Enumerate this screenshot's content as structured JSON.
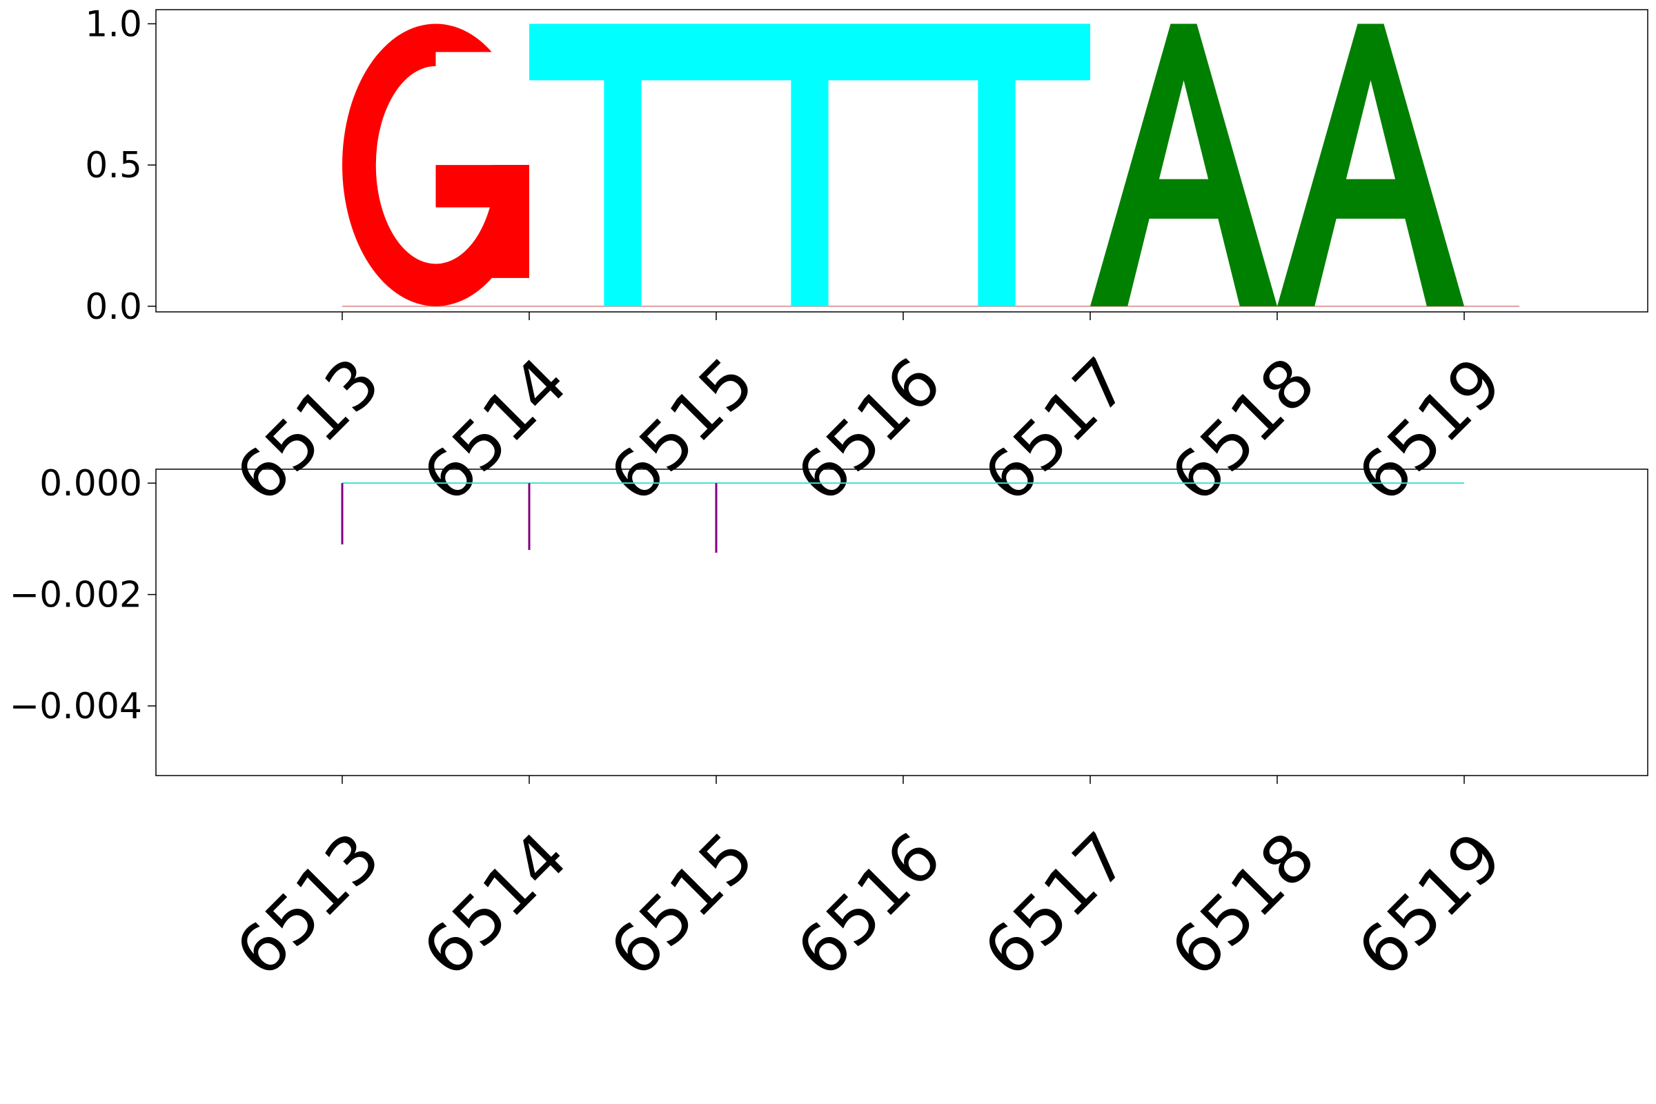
{
  "chart_data": [
    {
      "type": "sequence-logo",
      "title": "",
      "xlabel": "",
      "ylabel": "",
      "ylim": [
        -0.02,
        1.05
      ],
      "x_ticks": [
        "6513",
        "6514",
        "6515",
        "6516",
        "6517",
        "6518",
        "6519"
      ],
      "y_ticks": [
        {
          "value": 0.0,
          "label": "0.0"
        },
        {
          "value": 0.5,
          "label": "0.5"
        },
        {
          "value": 1.0,
          "label": "1.0"
        }
      ],
      "letters": [
        {
          "position": 6513,
          "base": "G",
          "height": 1.0,
          "color": "#ff0000"
        },
        {
          "position": 6514,
          "base": "T",
          "height": 1.0,
          "color": "#00ffff"
        },
        {
          "position": 6515,
          "base": "T",
          "height": 1.0,
          "color": "#00ffff"
        },
        {
          "position": 6516,
          "base": "T",
          "height": 1.0,
          "color": "#00ffff"
        },
        {
          "position": 6517,
          "base": "A",
          "height": 1.0,
          "color": "#008000"
        },
        {
          "position": 6518,
          "base": "A",
          "height": 1.0,
          "color": "#008000"
        }
      ],
      "grid": false
    },
    {
      "type": "bar",
      "title": "",
      "xlabel": "",
      "ylabel": "",
      "ylim": [
        -0.00525,
        0.00025
      ],
      "x_ticks": [
        "6513",
        "6514",
        "6515",
        "6516",
        "6517",
        "6518",
        "6519"
      ],
      "y_ticks": [
        {
          "value": 0.0,
          "label": "0.000"
        },
        {
          "value": -0.002,
          "label": "−0.002"
        },
        {
          "value": -0.004,
          "label": "−0.004"
        }
      ],
      "bars": [
        {
          "position": 6513,
          "value": -0.0011,
          "color": "#800080"
        },
        {
          "position": 6514,
          "value": -0.0012,
          "color": "#800080"
        },
        {
          "position": 6515,
          "value": -0.00125,
          "color": "#800080"
        }
      ],
      "grid": false
    }
  ]
}
